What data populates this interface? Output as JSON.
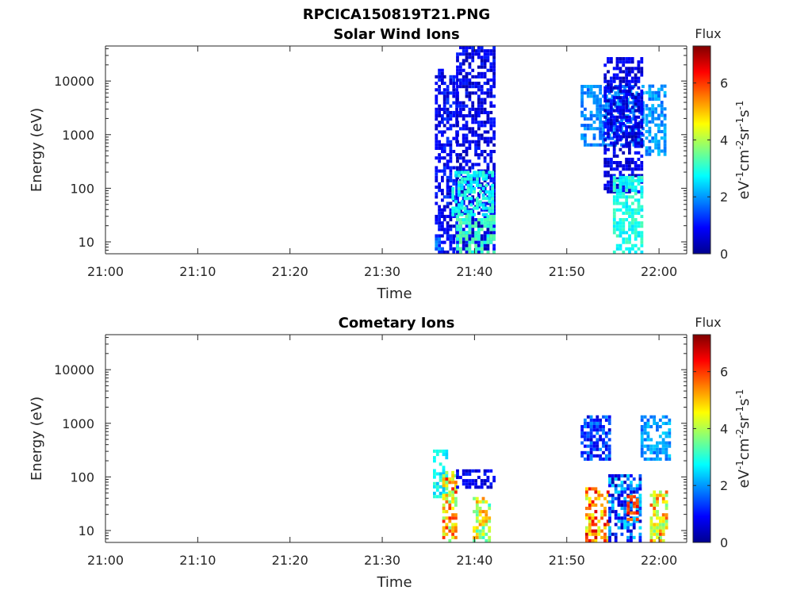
{
  "figure_title": "RPCICA150819T21.PNG",
  "chart_data": [
    {
      "type": "heatmap",
      "title": "Solar Wind Ions",
      "xlabel": "Time",
      "ylabel": "Energy (eV)",
      "x_ticks": [
        "21:00",
        "21:10",
        "21:20",
        "21:30",
        "21:40",
        "21:50",
        "22:00"
      ],
      "y_ticks": [
        "10",
        "100",
        "1000",
        "10000"
      ],
      "y_scale": "log",
      "ylim": [
        6,
        45000
      ],
      "xlim_minutes": [
        0,
        63
      ],
      "colorbar": {
        "label": "Flux",
        "unit": "eV-1cm-2sr-1s-1",
        "ticks": [
          "0",
          "2",
          "4",
          "6"
        ],
        "range": [
          0,
          7.3
        ]
      },
      "regions": [
        {
          "t": [
            35.7,
            36.5
          ],
          "e": [
            6,
            15000
          ],
          "flux": [
            0.5,
            1.2
          ]
        },
        {
          "t": [
            35.7,
            36.5
          ],
          "e": [
            6,
            11
          ],
          "flux": [
            1.5,
            2.2
          ]
        },
        {
          "t": [
            36.6,
            38.0
          ],
          "e": [
            6,
            12000
          ],
          "flux": [
            0.4,
            1.4
          ]
        },
        {
          "t": [
            38.0,
            42.0
          ],
          "e": [
            6,
            40000
          ],
          "flux": [
            0.3,
            1.2
          ]
        },
        {
          "t": [
            37.5,
            42.0
          ],
          "e": [
            30,
            200
          ],
          "flux": [
            2.4,
            3.2
          ]
        },
        {
          "t": [
            38.0,
            42.0
          ],
          "e": [
            6,
            30
          ],
          "flux": [
            2.8,
            3.5
          ]
        },
        {
          "t": [
            51.5,
            58.2
          ],
          "e": [
            600,
            8000
          ],
          "flux": [
            1.5,
            2.2
          ]
        },
        {
          "t": [
            54.0,
            58.0
          ],
          "e": [
            80,
            25000
          ],
          "flux": [
            0.3,
            1.1
          ]
        },
        {
          "t": [
            55.0,
            58.0
          ],
          "e": [
            6,
            150
          ],
          "flux": [
            2.5,
            3.3
          ]
        },
        {
          "t": [
            58.5,
            60.8
          ],
          "e": [
            400,
            8000
          ],
          "flux": [
            1.6,
            2.4
          ]
        }
      ]
    },
    {
      "type": "heatmap",
      "title": "Cometary Ions",
      "xlabel": "Time",
      "ylabel": "Energy (eV)",
      "x_ticks": [
        "21:00",
        "21:10",
        "21:20",
        "21:30",
        "21:40",
        "21:50",
        "22:00"
      ],
      "y_ticks": [
        "10",
        "100",
        "1000",
        "10000"
      ],
      "y_scale": "log",
      "ylim": [
        6,
        45000
      ],
      "xlim_minutes": [
        0,
        63
      ],
      "colorbar": {
        "label": "Flux",
        "unit": "eV-1cm-2sr-1s-1",
        "ticks": [
          "0",
          "2",
          "4",
          "6"
        ],
        "range": [
          0,
          7.3
        ]
      },
      "regions": [
        {
          "t": [
            35.5,
            37.0
          ],
          "e": [
            40,
            300
          ],
          "flux": [
            2.2,
            3.2
          ]
        },
        {
          "t": [
            36.5,
            38.0
          ],
          "e": [
            6,
            120
          ],
          "flux": [
            3.5,
            6.2
          ]
        },
        {
          "t": [
            38.0,
            42.0
          ],
          "e": [
            60,
            130
          ],
          "flux": [
            0.4,
            1.2
          ]
        },
        {
          "t": [
            39.8,
            41.5
          ],
          "e": [
            6,
            40
          ],
          "flux": [
            3.0,
            5.5
          ]
        },
        {
          "t": [
            51.5,
            54.5
          ],
          "e": [
            200,
            1300
          ],
          "flux": [
            0.5,
            2.0
          ]
        },
        {
          "t": [
            52.0,
            54.5
          ],
          "e": [
            6,
            60
          ],
          "flux": [
            4.0,
            6.8
          ]
        },
        {
          "t": [
            54.5,
            58.0
          ],
          "e": [
            6,
            100
          ],
          "flux": [
            0.3,
            2.6
          ]
        },
        {
          "t": [
            56.5,
            57.5
          ],
          "e": [
            15,
            40
          ],
          "flux": [
            5.5,
            6.5
          ]
        },
        {
          "t": [
            58.0,
            61.0
          ],
          "e": [
            200,
            1400
          ],
          "flux": [
            1.5,
            2.5
          ]
        },
        {
          "t": [
            59.0,
            60.8
          ],
          "e": [
            6,
            50
          ],
          "flux": [
            3.5,
            6.0
          ]
        }
      ]
    }
  ]
}
